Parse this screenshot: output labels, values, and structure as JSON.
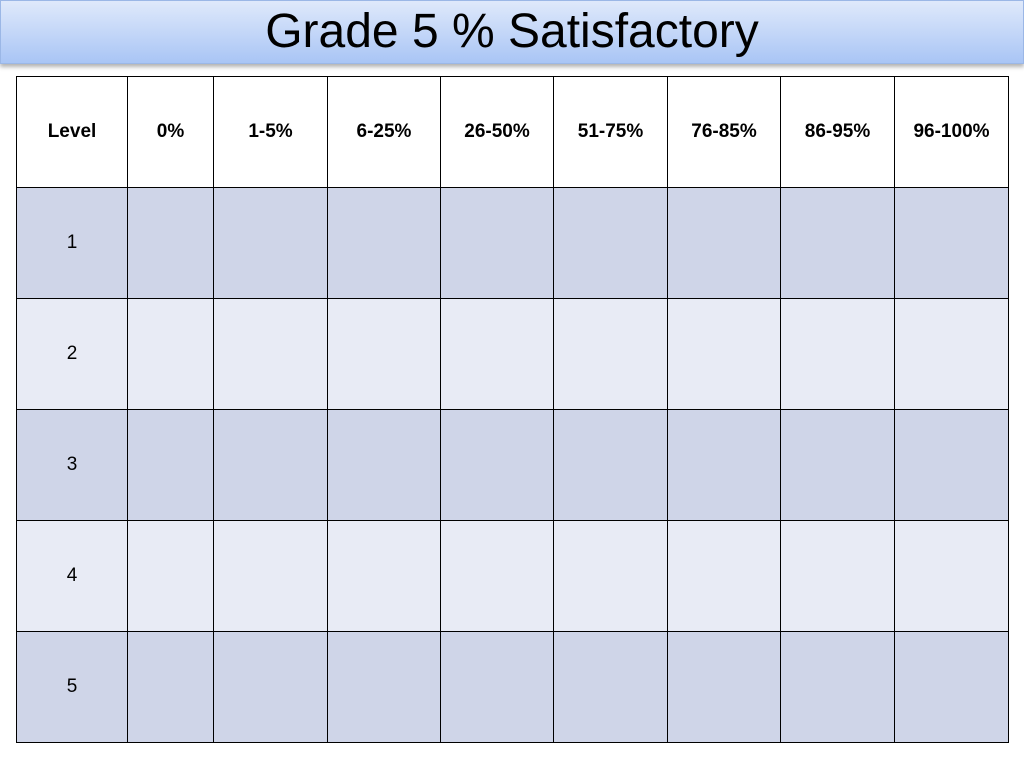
{
  "header": {
    "title": "Grade 5 % Satisfactory"
  },
  "table": {
    "columns": [
      "Level",
      "0%",
      "1-5%",
      "6-25%",
      "26-50%",
      "51-75%",
      "76-85%",
      "86-95%",
      "96-100%"
    ],
    "rows": [
      [
        "1"
      ],
      [
        "2"
      ],
      [
        "3"
      ],
      [
        "4"
      ],
      [
        "5"
      ]
    ]
  }
}
